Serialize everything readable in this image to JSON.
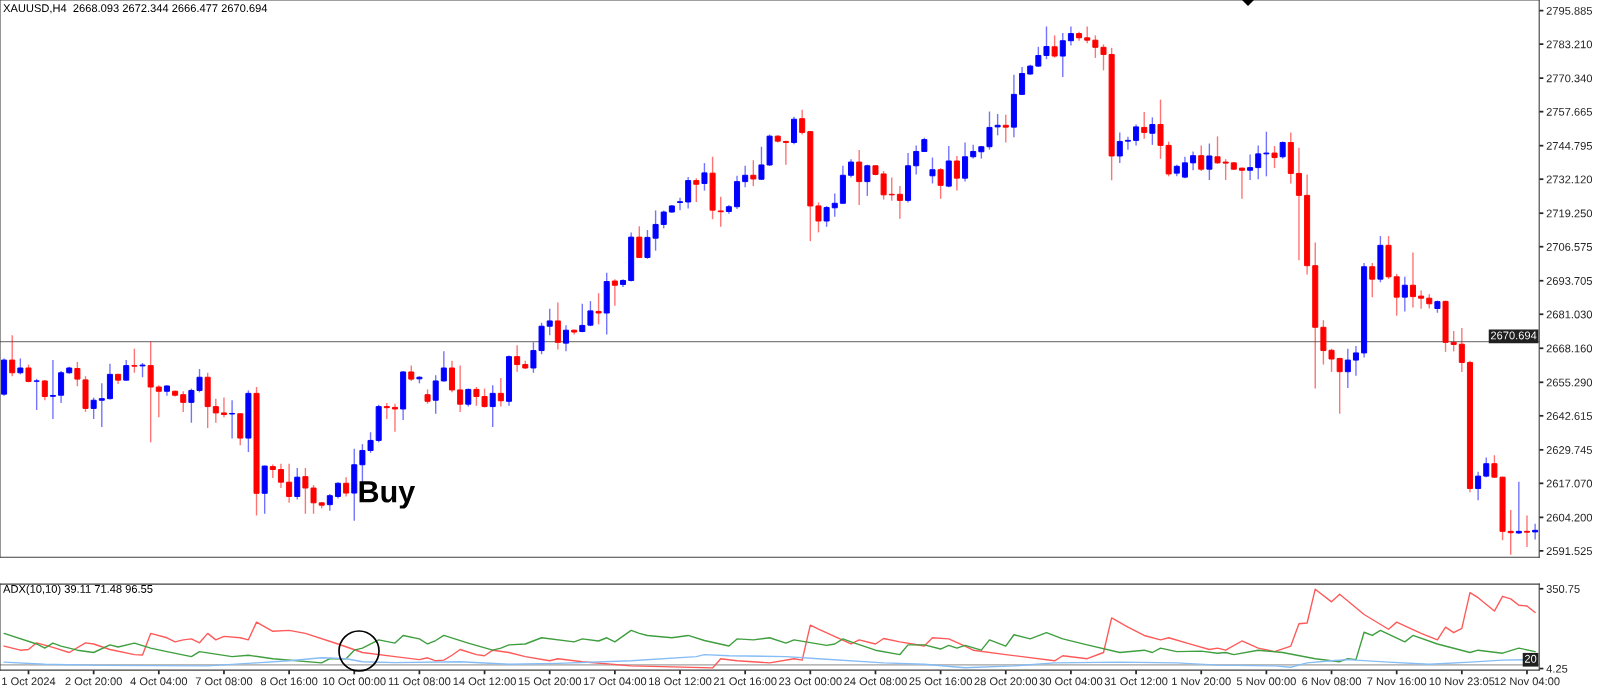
{
  "chart_data": [
    {
      "type": "candlestick",
      "title": "XAUUSD,H4  2668.093 2672.344 2666.477 2670.694",
      "categories": [
        null,
        null,
        null,
        "1 Oct 2024",
        null,
        null,
        null,
        null,
        null,
        null,
        null,
        "2 Oct 20:00",
        null,
        null,
        null,
        null,
        null,
        null,
        null,
        "4 Oct 04:00",
        null,
        null,
        null,
        null,
        null,
        null,
        null,
        "7 Oct 08:00",
        null,
        null,
        null,
        null,
        null,
        null,
        null,
        "8 Oct 16:00",
        null,
        null,
        null,
        null,
        null,
        null,
        null,
        "10 Oct 00:00",
        null,
        null,
        null,
        null,
        null,
        null,
        null,
        "11 Oct 08:00",
        null,
        null,
        null,
        null,
        null,
        null,
        null,
        "14 Oct 12:00",
        null,
        null,
        null,
        null,
        null,
        null,
        null,
        "15 Oct 20:00",
        null,
        null,
        null,
        null,
        null,
        null,
        null,
        "17 Oct 04:00",
        null,
        null,
        null,
        null,
        null,
        null,
        null,
        "18 Oct 12:00",
        null,
        null,
        null,
        null,
        null,
        null,
        null,
        "21 Oct 16:00",
        null,
        null,
        null,
        null,
        null,
        null,
        null,
        "23 Oct 00:00",
        null,
        null,
        null,
        null,
        null,
        null,
        null,
        "24 Oct 08:00",
        null,
        null,
        null,
        null,
        null,
        null,
        null,
        "25 Oct 16:00",
        null,
        null,
        null,
        null,
        null,
        null,
        null,
        "28 Oct 20:00",
        null,
        null,
        null,
        null,
        null,
        null,
        null,
        "30 Oct 04:00",
        null,
        null,
        null,
        null,
        null,
        null,
        null,
        "31 Oct 12:00",
        null,
        null,
        null,
        null,
        null,
        null,
        null,
        "1 Nov 20:00",
        null,
        null,
        null,
        null,
        null,
        null,
        null,
        "5 Nov 00:00",
        null,
        null,
        null,
        null,
        null,
        null,
        null,
        "6 Nov 08:00",
        null,
        null,
        null,
        null,
        null,
        null,
        null,
        "7 Nov 16:00",
        null,
        null,
        null,
        null,
        null,
        null,
        null,
        "10 Nov 23:05",
        null,
        null,
        null,
        null,
        null,
        null,
        null,
        "12 Nov 04:00",
        null
      ],
      "ohlc": [
        [
          2650.8,
          2664.3,
          2650.2,
          2663.7
        ],
        [
          2663.7,
          2673.1,
          2657.6,
          2658.9
        ],
        [
          2658.9,
          2664.3,
          2658.3,
          2660.7
        ],
        [
          2660.7,
          2662.0,
          2655.3,
          2655.6
        ],
        [
          2655.7,
          2656.6,
          2644.8,
          2655.8
        ],
        [
          2655.8,
          2656.1,
          2648.5,
          2649.9
        ],
        [
          2650.0,
          2663.7,
          2641.4,
          2650.3
        ],
        [
          2650.4,
          2659.6,
          2647.5,
          2658.9
        ],
        [
          2658.9,
          2661.2,
          2658.5,
          2660.7
        ],
        [
          2660.5,
          2663.0,
          2653.8,
          2656.5
        ],
        [
          2656.2,
          2657.6,
          2644.1,
          2645.4
        ],
        [
          2645.4,
          2649.5,
          2641.4,
          2648.5
        ],
        [
          2648.5,
          2654.9,
          2638.4,
          2649.1
        ],
        [
          2649.1,
          2662.3,
          2648.8,
          2658.3
        ],
        [
          2658.3,
          2658.5,
          2654.6,
          2656.1
        ],
        [
          2656.1,
          2663.7,
          2655.8,
          2661.6
        ],
        [
          2661.6,
          2668.0,
          2658.9,
          2661.4
        ],
        [
          2661.5,
          2662.6,
          2657.2,
          2661.8
        ],
        [
          2661.6,
          2670.7,
          2632.6,
          2653.5
        ],
        [
          2653.5,
          2654.2,
          2642.1,
          2651.9
        ],
        [
          2651.9,
          2654.2,
          2650.2,
          2653.9
        ],
        [
          2651.9,
          2652.2,
          2649.9,
          2650.4
        ],
        [
          2650.6,
          2651.9,
          2644.1,
          2647.7
        ],
        [
          2647.7,
          2652.9,
          2640.0,
          2652.2
        ],
        [
          2652.2,
          2660.3,
          2651.5,
          2657.2
        ],
        [
          2657.2,
          2658.9,
          2638.0,
          2646.1
        ],
        [
          2646.1,
          2649.1,
          2640.0,
          2643.7
        ],
        [
          2643.7,
          2649.5,
          2642.1,
          2643.1
        ],
        [
          2643.3,
          2648.5,
          2634.0,
          2643.5
        ],
        [
          2643.4,
          2643.4,
          2631.5,
          2634.2
        ],
        [
          2634.2,
          2652.2,
          2628.9,
          2651.1
        ],
        [
          2651.1,
          2653.5,
          2604.9,
          2613.3
        ],
        [
          2613.3,
          2623.8,
          2605.6,
          2623.6
        ],
        [
          2623.4,
          2624.2,
          2619.1,
          2622.3
        ],
        [
          2622.3,
          2624.5,
          2615.3,
          2617.5
        ],
        [
          2617.5,
          2624.5,
          2609.7,
          2612.1
        ],
        [
          2612.1,
          2622.9,
          2611.0,
          2619.4
        ],
        [
          2619.6,
          2622.9,
          2605.6,
          2615.3
        ],
        [
          2615.3,
          2616.4,
          2605.6,
          2609.7
        ],
        [
          2609.7,
          2609.9,
          2607.6,
          2608.8
        ],
        [
          2609.0,
          2613.0,
          2606.7,
          2612.4
        ],
        [
          2612.1,
          2617.5,
          2611.3,
          2617.1
        ],
        [
          2617.1,
          2619.4,
          2612.1,
          2613.4
        ],
        [
          2613.4,
          2630.2,
          2602.9,
          2624.1
        ],
        [
          2624.1,
          2631.9,
          2616.8,
          2629.5
        ],
        [
          2629.5,
          2636.4,
          2628.6,
          2633.3
        ],
        [
          2633.3,
          2646.8,
          2632.6,
          2646.1
        ],
        [
          2646.1,
          2647.5,
          2641.4,
          2645.7
        ],
        [
          2645.8,
          2647.2,
          2636.6,
          2645.2
        ],
        [
          2645.2,
          2659.6,
          2641.0,
          2659.2
        ],
        [
          2659.2,
          2661.6,
          2655.8,
          2656.5
        ],
        [
          2656.6,
          2657.6,
          2654.9,
          2657.2
        ],
        [
          2650.6,
          2652.6,
          2647.2,
          2648.1
        ],
        [
          2648.5,
          2658.0,
          2643.4,
          2655.8
        ],
        [
          2655.8,
          2667.0,
          2655.6,
          2660.7
        ],
        [
          2660.7,
          2663.4,
          2651.5,
          2652.4
        ],
        [
          2652.4,
          2661.6,
          2644.1,
          2647.0
        ],
        [
          2647.0,
          2652.9,
          2646.1,
          2652.6
        ],
        [
          2652.6,
          2653.5,
          2646.4,
          2649.9
        ],
        [
          2649.9,
          2652.9,
          2645.8,
          2646.1
        ],
        [
          2646.1,
          2654.2,
          2638.4,
          2651.1
        ],
        [
          2651.1,
          2656.9,
          2646.1,
          2648.3
        ],
        [
          2648.1,
          2665.4,
          2646.4,
          2665.0
        ],
        [
          2665.0,
          2669.3,
          2659.3,
          2662.0
        ],
        [
          2662.0,
          2663.4,
          2660.3,
          2660.7
        ],
        [
          2660.7,
          2670.4,
          2658.9,
          2667.3
        ],
        [
          2667.3,
          2677.8,
          2665.9,
          2676.5
        ],
        [
          2676.5,
          2683.1,
          2673.1,
          2678.5
        ],
        [
          2678.5,
          2685.5,
          2667.7,
          2670.4
        ],
        [
          2670.1,
          2676.9,
          2667.0,
          2675.0
        ],
        [
          2675.0,
          2675.3,
          2673.4,
          2674.3
        ],
        [
          2674.5,
          2685.0,
          2674.2,
          2676.8
        ],
        [
          2676.9,
          2686.0,
          2676.5,
          2682.3
        ],
        [
          2682.1,
          2689.0,
          2677.2,
          2681.5
        ],
        [
          2681.5,
          2696.7,
          2673.4,
          2693.4
        ],
        [
          2693.6,
          2694.3,
          2684.2,
          2692.0
        ],
        [
          2692.3,
          2694.3,
          2691.3,
          2693.8
        ],
        [
          2693.8,
          2712.0,
          2693.4,
          2710.2
        ],
        [
          2710.2,
          2714.3,
          2702.5,
          2702.5
        ],
        [
          2702.5,
          2712.9,
          2702.0,
          2710.1
        ],
        [
          2709.8,
          2720.3,
          2705.1,
          2715.0
        ],
        [
          2715.0,
          2720.3,
          2713.6,
          2719.7
        ],
        [
          2719.7,
          2722.4,
          2719.4,
          2722.0
        ],
        [
          2723.3,
          2725.1,
          2720.4,
          2723.6
        ],
        [
          2723.5,
          2732.9,
          2721.0,
          2731.6
        ],
        [
          2731.6,
          2732.5,
          2723.5,
          2730.2
        ],
        [
          2730.5,
          2738.2,
          2727.8,
          2734.5
        ],
        [
          2734.4,
          2740.6,
          2717.0,
          2720.4
        ],
        [
          2720.1,
          2725.5,
          2714.1,
          2719.8
        ],
        [
          2719.9,
          2722.4,
          2719.0,
          2721.7
        ],
        [
          2721.7,
          2733.4,
          2720.8,
          2731.2
        ],
        [
          2731.2,
          2737.2,
          2729.1,
          2733.6
        ],
        [
          2733.6,
          2739.3,
          2729.5,
          2732.2
        ],
        [
          2732.1,
          2744.4,
          2731.8,
          2737.5
        ],
        [
          2737.5,
          2749.0,
          2737.1,
          2748.4
        ],
        [
          2748.4,
          2748.7,
          2746.0,
          2746.5
        ],
        [
          2746.4,
          2746.7,
          2737.6,
          2746.0
        ],
        [
          2746.0,
          2755.7,
          2745.3,
          2754.8
        ],
        [
          2755.0,
          2758.4,
          2749.0,
          2749.8
        ],
        [
          2750.1,
          2750.3,
          2708.7,
          2722.0
        ],
        [
          2722.0,
          2723.3,
          2712.0,
          2716.3
        ],
        [
          2716.3,
          2722.0,
          2714.1,
          2721.4
        ],
        [
          2721.3,
          2726.7,
          2717.9,
          2723.0
        ],
        [
          2723.0,
          2737.2,
          2722.8,
          2733.6
        ],
        [
          2733.6,
          2739.7,
          2732.8,
          2738.6
        ],
        [
          2738.6,
          2743.2,
          2722.4,
          2731.2
        ],
        [
          2731.2,
          2737.6,
          2725.8,
          2737.2
        ],
        [
          2737.2,
          2737.5,
          2733.6,
          2733.9
        ],
        [
          2734.1,
          2735.2,
          2724.4,
          2726.2
        ],
        [
          2726.4,
          2732.8,
          2724.0,
          2726.2
        ],
        [
          2726.4,
          2729.5,
          2717.2,
          2724.1
        ],
        [
          2724.1,
          2742.0,
          2723.3,
          2737.2
        ],
        [
          2737.2,
          2744.9,
          2733.9,
          2742.6
        ],
        [
          2742.6,
          2747.8,
          2742.5,
          2747.1
        ],
        [
          2733.4,
          2740.3,
          2730.5,
          2735.7
        ],
        [
          2735.7,
          2736.3,
          2724.7,
          2729.8
        ],
        [
          2729.5,
          2744.7,
          2729.1,
          2739.0
        ],
        [
          2739.0,
          2740.9,
          2727.8,
          2732.5
        ],
        [
          2732.5,
          2746.0,
          2731.2,
          2740.6
        ],
        [
          2740.6,
          2745.1,
          2739.9,
          2742.6
        ],
        [
          2742.5,
          2744.7,
          2739.9,
          2744.4
        ],
        [
          2744.4,
          2757.7,
          2743.3,
          2751.7
        ],
        [
          2751.9,
          2756.8,
          2748.7,
          2752.5
        ],
        [
          2752.5,
          2756.5,
          2746.0,
          2751.8
        ],
        [
          2751.8,
          2771.6,
          2748.0,
          2764.2
        ],
        [
          2764.2,
          2774.6,
          2764.0,
          2772.1
        ],
        [
          2771.9,
          2775.4,
          2771.6,
          2774.9
        ],
        [
          2774.9,
          2782.2,
          2774.6,
          2778.9
        ],
        [
          2778.9,
          2789.9,
          2777.5,
          2782.3
        ],
        [
          2782.2,
          2786.5,
          2778.1,
          2778.7
        ],
        [
          2778.7,
          2787.4,
          2770.8,
          2784.5
        ],
        [
          2784.5,
          2789.9,
          2782.7,
          2787.2
        ],
        [
          2787.2,
          2787.9,
          2784.5,
          2785.6
        ],
        [
          2785.6,
          2789.9,
          2783.5,
          2784.7
        ],
        [
          2784.7,
          2786.5,
          2778.0,
          2782.0
        ],
        [
          2782.0,
          2783.1,
          2773.3,
          2779.3
        ],
        [
          2779.3,
          2781.8,
          2731.7,
          2740.9
        ],
        [
          2740.9,
          2749.8,
          2738.2,
          2746.4
        ],
        [
          2746.5,
          2748.2,
          2743.3,
          2746.8
        ],
        [
          2746.8,
          2752.8,
          2744.9,
          2751.9
        ],
        [
          2751.7,
          2757.5,
          2747.4,
          2749.8
        ],
        [
          2749.5,
          2755.5,
          2745.1,
          2752.8
        ],
        [
          2752.8,
          2762.2,
          2739.8,
          2744.9
        ],
        [
          2744.9,
          2746.3,
          2733.2,
          2734.1
        ],
        [
          2734.4,
          2737.6,
          2733.2,
          2737.0
        ],
        [
          2732.9,
          2740.6,
          2732.5,
          2738.3
        ],
        [
          2738.3,
          2742.6,
          2735.5,
          2741.0
        ],
        [
          2741.0,
          2744.9,
          2735.2,
          2735.9
        ],
        [
          2735.9,
          2745.6,
          2731.8,
          2740.9
        ],
        [
          2740.6,
          2748.3,
          2737.9,
          2738.3
        ],
        [
          2738.6,
          2739.7,
          2731.8,
          2738.2
        ],
        [
          2738.3,
          2738.6,
          2735.6,
          2735.9
        ],
        [
          2736.3,
          2736.5,
          2724.7,
          2735.5
        ],
        [
          2735.5,
          2741.5,
          2731.8,
          2736.5
        ],
        [
          2736.5,
          2744.9,
          2732.1,
          2741.7
        ],
        [
          2741.7,
          2750.1,
          2733.2,
          2742.0
        ],
        [
          2742.0,
          2744.7,
          2736.3,
          2740.3
        ],
        [
          2740.6,
          2746.4,
          2739.9,
          2746.0
        ],
        [
          2746.0,
          2749.8,
          2730.5,
          2734.3
        ],
        [
          2734.3,
          2744.0,
          2701.5,
          2726.0
        ],
        [
          2726.0,
          2733.9,
          2696.1,
          2699.4
        ],
        [
          2699.4,
          2708.2,
          2652.9,
          2676.1
        ],
        [
          2676.1,
          2678.8,
          2662.0,
          2667.3
        ],
        [
          2667.4,
          2668.0,
          2659.2,
          2664.1
        ],
        [
          2664.3,
          2664.6,
          2643.4,
          2659.3
        ],
        [
          2659.3,
          2668.0,
          2653.1,
          2663.7
        ],
        [
          2663.7,
          2669.0,
          2657.8,
          2666.4
        ],
        [
          2666.4,
          2700.4,
          2664.7,
          2699.0
        ],
        [
          2699.0,
          2700.4,
          2687.5,
          2694.3
        ],
        [
          2694.3,
          2710.6,
          2693.1,
          2707.1
        ],
        [
          2707.1,
          2710.6,
          2694.4,
          2695.2
        ],
        [
          2695.2,
          2696.3,
          2680.5,
          2687.5
        ],
        [
          2687.5,
          2695.2,
          2682.1,
          2692.0
        ],
        [
          2692.0,
          2704.4,
          2683.6,
          2687.7
        ],
        [
          2687.9,
          2690.0,
          2683.1,
          2687.1
        ],
        [
          2687.1,
          2688.6,
          2683.2,
          2685.0
        ],
        [
          2683.2,
          2686.2,
          2681.6,
          2685.8
        ],
        [
          2685.9,
          2686.2,
          2666.8,
          2670.4
        ],
        [
          2670.4,
          2674.7,
          2667.0,
          2669.6
        ],
        [
          2669.7,
          2675.8,
          2659.2,
          2662.8
        ],
        [
          2662.8,
          2663.4,
          2613.7,
          2615.1
        ],
        [
          2615.1,
          2621.5,
          2610.7,
          2619.8
        ],
        [
          2619.8,
          2626.8,
          2619.4,
          2624.5
        ],
        [
          2624.5,
          2627.7,
          2619.1,
          2619.4
        ],
        [
          2619.4,
          2619.6,
          2595.5,
          2598.9
        ],
        [
          2598.9,
          2607.0,
          2590.1,
          2598.4
        ],
        [
          2598.3,
          2617.7,
          2597.9,
          2598.9
        ],
        [
          2598.9,
          2604.9,
          2593.0,
          2598.6
        ],
        [
          2598.7,
          2601.8,
          2595.8,
          2599.3
        ]
      ],
      "colors": [
        "#0000ff",
        "#ff0000",
        "#0000ff",
        "#ff0000",
        "#0000ff",
        "#ff0000",
        "#0000ff",
        "#0000ff",
        "#0000ff",
        "#ff0000",
        "#ff0000",
        "#0000ff",
        "#0000ff",
        "#0000ff",
        "#ff0000",
        "#0000ff",
        "#ff0000",
        "#0000ff",
        "#ff0000",
        "#ff0000",
        "#0000ff",
        "#ff0000",
        "#ff0000",
        "#0000ff",
        "#0000ff",
        "#ff0000",
        "#ff0000",
        "#ff0000",
        "#0000ff",
        "#ff0000",
        "#0000ff",
        "#ff0000",
        "#0000ff",
        "#ff0000",
        "#ff0000",
        "#ff0000",
        "#0000ff",
        "#ff0000",
        "#ff0000",
        "#ff0000",
        "#0000ff",
        "#0000ff",
        "#ff0000",
        "#0000ff",
        "#0000ff",
        "#0000ff",
        "#0000ff",
        "#ff0000",
        "#ff0000",
        "#0000ff",
        "#ff0000",
        "#0000ff",
        "#ff0000",
        "#0000ff",
        "#0000ff",
        "#ff0000",
        "#ff0000",
        "#0000ff",
        "#ff0000",
        "#ff0000",
        "#0000ff",
        "#ff0000",
        "#0000ff",
        "#ff0000",
        "#ff0000",
        "#0000ff",
        "#0000ff",
        "#0000ff",
        "#ff0000",
        "#0000ff",
        "#ff0000",
        "#0000ff",
        "#0000ff",
        "#ff0000",
        "#0000ff",
        "#ff0000",
        "#0000ff",
        "#0000ff",
        "#ff0000",
        "#0000ff",
        "#0000ff",
        "#0000ff",
        "#0000ff",
        "#0000ff",
        "#0000ff",
        "#ff0000",
        "#0000ff",
        "#ff0000",
        "#ff0000",
        "#0000ff",
        "#0000ff",
        "#0000ff",
        "#ff0000",
        "#0000ff",
        "#0000ff",
        "#ff0000",
        "#ff0000",
        "#0000ff",
        "#ff0000",
        "#ff0000",
        "#ff0000",
        "#0000ff",
        "#0000ff",
        "#0000ff",
        "#0000ff",
        "#ff0000",
        "#0000ff",
        "#ff0000",
        "#ff0000",
        "#ff0000",
        "#ff0000",
        "#0000ff",
        "#0000ff",
        "#0000ff",
        "#0000ff",
        "#ff0000",
        "#0000ff",
        "#ff0000",
        "#0000ff",
        "#0000ff",
        "#0000ff",
        "#0000ff",
        "#0000ff",
        "#ff0000",
        "#0000ff",
        "#0000ff",
        "#0000ff",
        "#0000ff",
        "#0000ff",
        "#ff0000",
        "#0000ff",
        "#0000ff",
        "#ff0000",
        "#ff0000",
        "#ff0000",
        "#ff0000",
        "#ff0000",
        "#0000ff",
        "#0000ff",
        "#0000ff",
        "#ff0000",
        "#0000ff",
        "#ff0000",
        "#ff0000",
        "#0000ff",
        "#0000ff",
        "#0000ff",
        "#ff0000",
        "#0000ff",
        "#ff0000",
        "#ff0000",
        "#ff0000",
        "#ff0000",
        "#0000ff",
        "#0000ff",
        "#0000ff",
        "#ff0000",
        "#0000ff",
        "#ff0000",
        "#ff0000",
        "#ff0000",
        "#ff0000",
        "#ff0000",
        "#ff0000",
        "#ff0000",
        "#0000ff",
        "#0000ff",
        "#0000ff",
        "#ff0000",
        "#0000ff",
        "#ff0000",
        "#ff0000",
        "#0000ff",
        "#ff0000",
        "#ff0000",
        "#ff0000",
        "#0000ff",
        "#ff0000",
        "#ff0000",
        "#ff0000",
        "#ff0000",
        "#0000ff",
        "#0000ff",
        "#ff0000",
        "#ff0000",
        "#ff0000",
        "#0000ff",
        "#ff0000",
        "#0000ff"
      ],
      "ylim": [
        2589.1,
        2799.9
      ],
      "yticks": [
        2795.885,
        {
          "value": 2783.21,
          "label": "2783.210"
        },
        {
          "value": 2770.34,
          "label": "2770.340"
        },
        2757.665,
        2744.795,
        {
          "value": 2732.12,
          "label": "2732.120"
        },
        {
          "value": 2719.25,
          "label": "2719.250"
        },
        2706.575,
        2693.705,
        {
          "value": 2681.03,
          "label": "2681.030"
        },
        {
          "value": 2668.16,
          "label": "2668.160"
        },
        {
          "value": 2655.29,
          "label": "2655.290"
        },
        2642.615,
        2629.745,
        {
          "value": 2617.07,
          "label": "2617.070"
        },
        {
          "value": 2604.2,
          "label": "2604.200"
        },
        2591.525
      ],
      "tick_labels": "y",
      "ref_lines": [
        {
          "axis": "y",
          "value": 2670.694,
          "label": "2670.694",
          "color": "#808080"
        }
      ],
      "annotations": [
        {
          "text": "Buy",
          "x": "10 Oct 00:00",
          "y": 2612.9
        }
      ]
    },
    {
      "type": "line",
      "title": "ADX(10,10) 39.11 71.48 96.55",
      "categories": [
        null,
        null,
        null,
        "1 Oct 2024",
        null,
        null,
        null,
        null,
        null,
        null,
        null,
        "2 Oct 20:00",
        null,
        null,
        null,
        null,
        null,
        null,
        null,
        "4 Oct 04:00",
        null,
        null,
        null,
        null,
        null,
        null,
        null,
        "7 Oct 08:00",
        null,
        null,
        null,
        null,
        null,
        null,
        null,
        "8 Oct 16:00",
        null,
        null,
        null,
        null,
        null,
        null,
        null,
        "10 Oct 00:00",
        null,
        null,
        null,
        null,
        null,
        null,
        null,
        "11 Oct 08:00",
        null,
        null,
        null,
        null,
        null,
        null,
        null,
        "14 Oct 12:00",
        null,
        null,
        null,
        null,
        null,
        null,
        null,
        "15 Oct 20:00",
        null,
        null,
        null,
        null,
        null,
        null,
        null,
        "17 Oct 04:00",
        null,
        null,
        null,
        null,
        null,
        null,
        null,
        "18 Oct 12:00",
        null,
        null,
        null,
        null,
        null,
        null,
        null,
        "21 Oct 16:00",
        null,
        null,
        null,
        null,
        null,
        null,
        null,
        "23 Oct 00:00",
        null,
        null,
        null,
        null,
        null,
        null,
        null,
        "24 Oct 08:00",
        null,
        null,
        null,
        null,
        null,
        null,
        null,
        "25 Oct 16:00",
        null,
        null,
        null,
        null,
        null,
        null,
        null,
        "28 Oct 20:00",
        null,
        null,
        null,
        null,
        null,
        null,
        null,
        "30 Oct 04:00",
        null,
        null,
        null,
        null,
        null,
        null,
        null,
        "31 Oct 12:00",
        null,
        null,
        null,
        null,
        null,
        null,
        null,
        "1 Nov 20:00",
        null,
        null,
        null,
        null,
        null,
        null,
        null,
        "5 Nov 00:00",
        null,
        null,
        null,
        null,
        null,
        null,
        null,
        "6 Nov 08:00",
        null,
        null,
        null,
        null,
        null,
        null,
        null,
        "7 Nov 16:00",
        null,
        null,
        null,
        null,
        null,
        null,
        null,
        "10 Nov 23:05",
        null,
        null,
        null,
        null,
        null,
        null,
        null,
        "12 Nov 04:00",
        null
      ],
      "series": [
        {
          "color": "#ff5a5a",
          "values": [
            102,
            null,
            84,
            87,
            116,
            null,
            96,
            null,
            74,
            null,
            116,
            111,
            null,
            87,
            null,
            null,
            65,
            63,
            157,
            null,
            138,
            120,
            129,
            133,
            116,
            157,
            129,
            144,
            null,
            138,
            129,
            206,
            null,
            166,
            null,
            170,
            null,
            157,
            null,
            null,
            null,
            111,
            null,
            null,
            74,
            null,
            null,
            null,
            56,
            null,
            null,
            43,
            51,
            38,
            41,
            62,
            87,
            null,
            65,
            60,
            84,
            null,
            74,
            null,
            56,
            null,
            null,
            38,
            47,
            null,
            null,
            34,
            null,
            null,
            null,
            null,
            null,
            16,
            null,
            null,
            null,
            null,
            null,
            null,
            null,
            null,
            null,
            7,
            47,
            null,
            38,
            null,
            null,
            null,
            29,
            null,
            null,
            47,
            41,
            193,
            175,
            null,
            null,
            null,
            111,
            129,
            null,
            111,
            135,
            null,
            120,
            null,
            null,
            102,
            138,
            null,
            133,
            null,
            102,
            84,
            null,
            null,
            null,
            65,
            null,
            null,
            null,
            null,
            null,
            38,
            60,
            null,
            null,
            47,
            null,
            74,
            224,
            null,
            184,
            null,
            148,
            null,
            129,
            138,
            null,
            null,
            107,
            null,
            87,
            93,
            84,
            null,
            124,
            null,
            93,
            null,
            78,
            null,
            102,
            199,
            202,
            349,
            null,
            294,
            327,
            null,
            null,
            239,
            null,
            null,
            175,
            206,
            null,
            null,
            157,
            null,
            129,
            184,
            160,
            179,
            334,
            312,
            null,
            254,
            318,
            307,
            279,
            276,
            248
          ]
        },
        {
          "color": "#3f9f3f",
          "values": [
            157,
            null,
            null,
            null,
            111,
            93,
            115,
            102,
            null,
            84,
            null,
            74,
            null,
            107,
            98,
            null,
            115,
            null,
            93,
            null,
            78,
            null,
            null,
            56,
            78,
            null,
            null,
            null,
            56,
            null,
            62,
            null,
            null,
            47,
            null,
            null,
            null,
            null,
            null,
            29,
            47,
            null,
            47,
            84,
            93,
            null,
            129,
            null,
            115,
            148,
            null,
            133,
            111,
            126,
            148,
            null,
            null,
            115,
            null,
            null,
            84,
            93,
            107,
            null,
            111,
            null,
            138,
            null,
            null,
            null,
            120,
            133,
            null,
            124,
            138,
            120,
            null,
            170,
            157,
            148,
            null,
            null,
            138,
            null,
            148,
            null,
            126,
            null,
            null,
            102,
            133,
            null,
            129,
            null,
            138,
            null,
            115,
            129,
            null,
            null,
            null,
            105,
            111,
            133,
            120,
            null,
            null,
            84,
            null,
            null,
            65,
            107,
            null,
            107,
            null,
            89,
            105,
            93,
            105,
            null,
            84,
            129,
            null,
            102,
            151,
            null,
            133,
            null,
            160,
            null,
            133,
            null,
            null,
            107,
            null,
            null,
            null,
            74,
            null,
            null,
            84,
            74,
            93,
            null,
            78,
            null,
            null,
            80,
            null,
            71,
            74,
            65,
            null,
            null,
            84,
            null,
            null,
            74,
            null,
            null,
            null,
            47,
            null,
            null,
            34,
            47,
            43,
            162,
            148,
            170,
            null,
            null,
            120,
            148,
            null,
            null,
            111,
            null,
            null,
            null,
            74,
            84,
            null,
            null,
            71,
            null,
            93,
            null,
            78
          ]
        },
        {
          "color": "#86bdf5",
          "values": [
            32,
            null,
            null,
            null,
            null,
            23,
            null,
            null,
            null,
            null,
            null,
            null,
            18,
            null,
            null,
            null,
            null,
            null,
            null,
            null,
            null,
            null,
            null,
            null,
            null,
            16,
            null,
            null,
            null,
            null,
            null,
            29,
            null,
            null,
            null,
            38,
            null,
            null,
            null,
            51,
            null,
            null,
            47,
            null,
            34,
            null,
            null,
            null,
            30,
            null,
            null,
            null,
            null,
            null,
            null,
            null,
            34,
            null,
            null,
            null,
            null,
            null,
            23,
            null,
            null,
            null,
            null,
            null,
            27,
            null,
            null,
            null,
            null,
            null,
            null,
            null,
            null,
            38,
            null,
            null,
            null,
            null,
            null,
            null,
            null,
            56,
            65,
            null,
            null,
            60,
            null,
            null,
            null,
            null,
            null,
            null,
            56,
            null,
            null,
            null,
            47,
            null,
            null,
            null,
            null,
            null,
            null,
            null,
            29,
            null,
            null,
            null,
            null,
            23,
            null,
            null,
            null,
            null,
            8,
            null,
            null,
            null,
            null,
            null,
            16,
            null,
            null,
            null,
            null,
            29,
            null,
            null,
            null,
            null,
            null,
            null,
            null,
            32,
            null,
            null,
            null,
            null,
            null,
            null,
            29,
            null,
            null,
            null,
            null,
            19,
            null,
            null,
            null,
            null,
            null,
            null,
            16,
            null,
            10,
            null,
            29,
            null,
            null,
            38,
            null,
            43,
            null,
            null,
            null,
            null,
            32,
            null,
            null,
            null,
            null,
            23,
            null,
            null,
            null,
            null,
            32,
            null,
            null,
            null,
            41,
            null,
            null,
            null,
            43
          ]
        }
      ],
      "ylim": [
        -2.5,
        371
      ],
      "yticks": [
        350.75,
        4.25
      ],
      "ref_lines": [
        {
          "axis": "y",
          "value": 20,
          "label": "20",
          "color": "#a0a0a0"
        }
      ]
    }
  ]
}
